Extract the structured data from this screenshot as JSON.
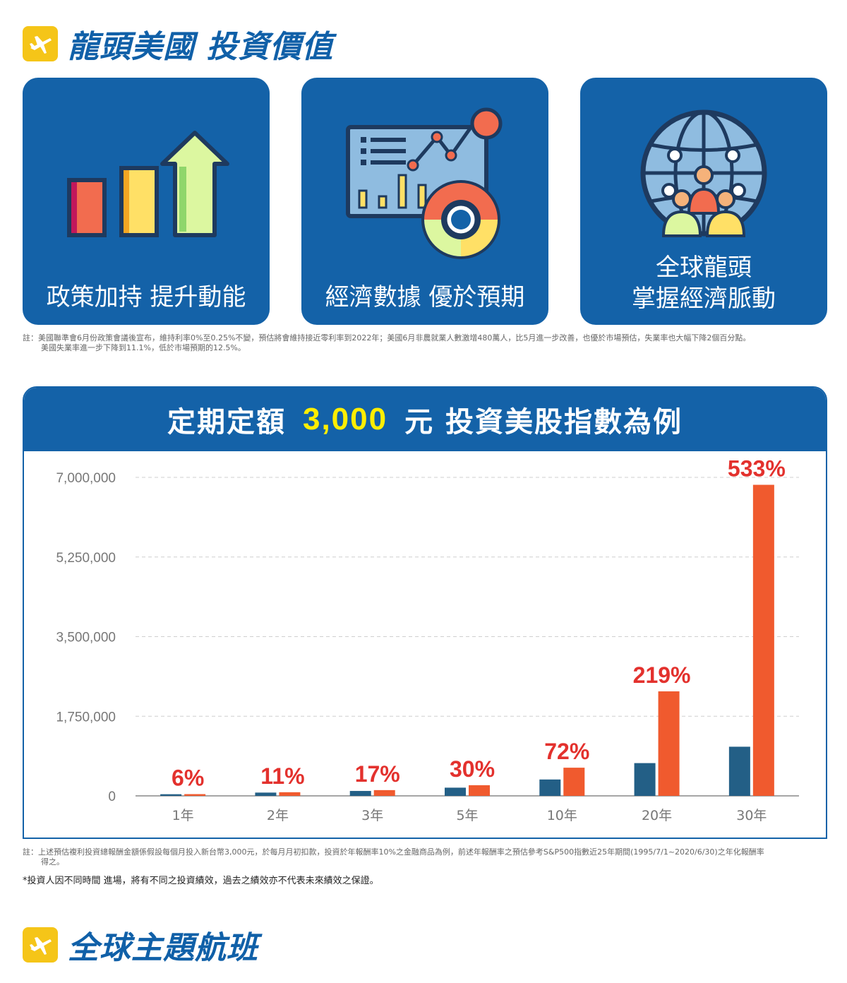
{
  "header": {
    "title": "龍頭美國  投資價值"
  },
  "cards": [
    {
      "label_lines": [
        "政策加持 提升動能"
      ],
      "icon": "bar-growth-arrow-icon"
    },
    {
      "label_lines": [
        "經濟數據 優於預期"
      ],
      "icon": "dashboard-analytics-icon"
    },
    {
      "label_lines": [
        "全球龍頭",
        "掌握經濟脈動"
      ],
      "icon": "global-network-people-icon"
    }
  ],
  "note1": {
    "line1": "註：美國聯準會6月份政策會議後宣布，維持利率0%至0.25%不變，預估將會維持接近零利率到2022年；美國6月非農就業人數激增480萬人，比5月進一步改善，也優於市場預估，失業率也大幅下降2個百分點。",
    "line2": "美國失業率進一步下降到11.1%，低於市場預期的12.5%。"
  },
  "chart_banner": {
    "prefix": "定期定額",
    "amount": "3,000",
    "suffix": "元  投資美股指數為例"
  },
  "chart_data": {
    "type": "bar",
    "title": "定期定額 3,000 元 投資美股指數為例",
    "categories": [
      "1年",
      "2年",
      "3年",
      "5年",
      "10年",
      "20年",
      "30年"
    ],
    "series": [
      {
        "values": [
          36000,
          72000,
          108000,
          180000,
          360000,
          720000,
          1080000
        ],
        "color": "#235f86"
      },
      {
        "values": [
          38160,
          79920,
          126360,
          234000,
          619200,
          2296800,
          6836400
        ],
        "color": "#f05a2e"
      }
    ],
    "bar_labels": [
      "6%",
      "11%",
      "17%",
      "30%",
      "72%",
      "219%",
      "533%"
    ],
    "label_color": "#e3312d",
    "yticks": [
      0,
      1750000,
      3500000,
      5250000,
      7000000
    ],
    "ytick_labels": [
      "0",
      "1,750,000",
      "3,500,000",
      "5,250,000",
      "7,000,000"
    ],
    "ylim": [
      0,
      7000000
    ],
    "grid": true,
    "legend": false,
    "xlabel": "",
    "ylabel": ""
  },
  "note2": {
    "line1": "註：上述預估複利投資總報酬金額係假設每個月投入新台幣3,000元，於每月月初扣款，投資於年報酬率10%之金融商品為例，前述年報酬率之預估參考S&P500指數近25年期間(1995/7/1~2020/6/30)之年化報酬率",
    "line2": "得之。"
  },
  "disclaimer": "*投資人因不同時間 進場，將有不同之投資績效，過去之績效亦不代表未來績效之保證。",
  "footer": {
    "title": "全球主題航班"
  }
}
